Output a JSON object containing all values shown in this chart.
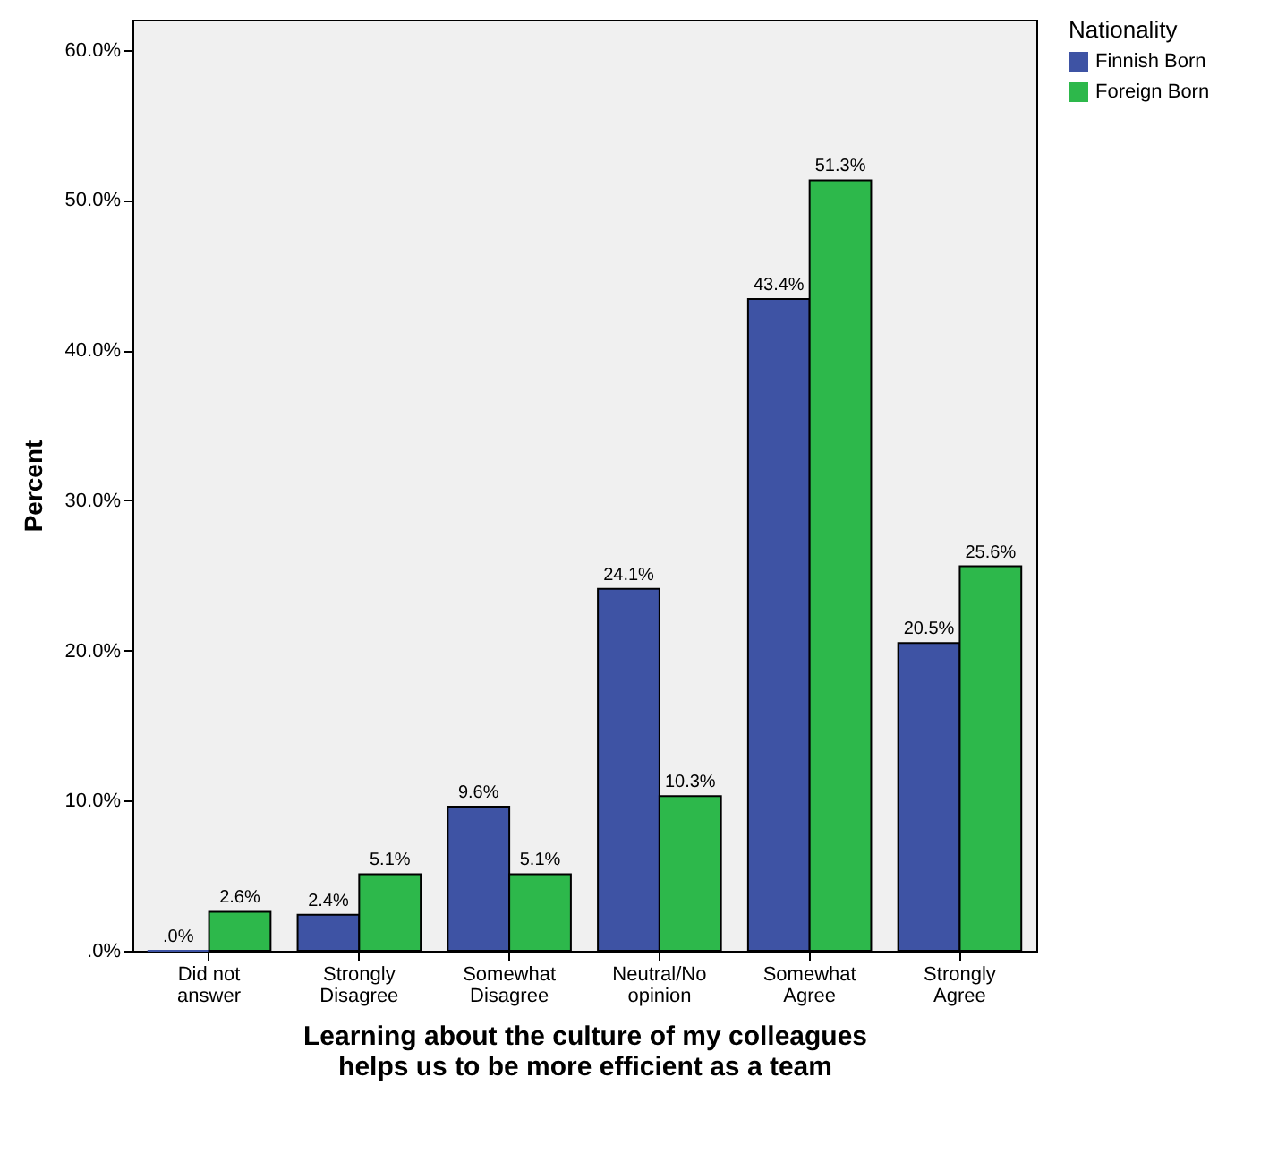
{
  "chart_data": {
    "type": "bar",
    "xlabel": "Learning about the culture of my colleagues\nhelps us to be more efficient as a team",
    "ylabel": "Percent",
    "legend_title": "Nationality",
    "legend": "top right",
    "categories": [
      "Did not\nanswer",
      "Strongly\nDisagree",
      "Somewhat\nDisagree",
      "Neutral/No\nopinion",
      "Somewhat\nAgree",
      "Strongly\nAgree"
    ],
    "series": [
      {
        "name": "Finnish Born",
        "color": "#3e53a4",
        "values": [
          0,
          2.4,
          9.6,
          24.1,
          43.4,
          20.5
        ],
        "value_labels": [
          ".0%",
          "2.4%",
          "9.6%",
          "24.1%",
          "43.4%",
          "20.5%"
        ]
      },
      {
        "name": "Foreign Born",
        "color": "#2db84b",
        "values": [
          2.6,
          5.1,
          5.1,
          10.3,
          51.3,
          25.6
        ],
        "value_labels": [
          "2.6%",
          "5.1%",
          "5.1%",
          "10.3%",
          "51.3%",
          "25.6%"
        ]
      }
    ],
    "ylim": [
      0,
      62
    ],
    "yticks": [
      {
        "value": 0,
        "label": ".0%"
      },
      {
        "value": 10,
        "label": "10.0%"
      },
      {
        "value": 20,
        "label": "20.0%"
      },
      {
        "value": 30,
        "label": "30.0%"
      },
      {
        "value": 40,
        "label": "40.0%"
      },
      {
        "value": 50,
        "label": "50.0%"
      },
      {
        "value": 60,
        "label": "60.0%"
      }
    ]
  }
}
